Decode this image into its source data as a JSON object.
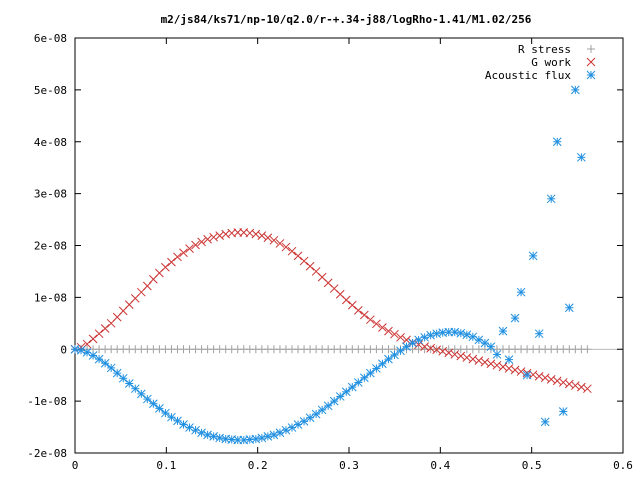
{
  "chart_data": {
    "type": "scatter",
    "title": "m2/js84/ks71/np-10/q2.0/r-+.34-j88/logRho-1.41/M1.02/256",
    "xlabel": "",
    "ylabel": "",
    "xlim": [
      0,
      0.6
    ],
    "ylim": [
      -2e-08,
      6e-08
    ],
    "x_ticks": [
      {
        "v": 0,
        "label": "0"
      },
      {
        "v": 0.1,
        "label": "0.1"
      },
      {
        "v": 0.2,
        "label": "0.2"
      },
      {
        "v": 0.3,
        "label": "0.3"
      },
      {
        "v": 0.4,
        "label": "0.4"
      },
      {
        "v": 0.5,
        "label": "0.5"
      },
      {
        "v": 0.6,
        "label": "0.6"
      }
    ],
    "y_ticks": [
      {
        "v": -2e-08,
        "label": "-2e-08"
      },
      {
        "v": -1e-08,
        "label": "-1e-08"
      },
      {
        "v": 0,
        "label": "0"
      },
      {
        "v": 1e-08,
        "label": "1e-08"
      },
      {
        "v": 2e-08,
        "label": "2e-08"
      },
      {
        "v": 3e-08,
        "label": "3e-08"
      },
      {
        "v": 4e-08,
        "label": "4e-08"
      },
      {
        "v": 5e-08,
        "label": "5e-08"
      },
      {
        "v": 6e-08,
        "label": "6e-08"
      }
    ],
    "legend_position": "top-right",
    "grid": false,
    "series": [
      {
        "name": "R stress",
        "marker": "plus",
        "color": "#a0a0a0",
        "points": [
          [
            0,
            0
          ],
          [
            0.0066,
            0
          ],
          [
            0.0132,
            0
          ],
          [
            0.0198,
            0
          ],
          [
            0.0264,
            0
          ],
          [
            0.033,
            0
          ],
          [
            0.0396,
            0
          ],
          [
            0.0462,
            0
          ],
          [
            0.0528,
            0
          ],
          [
            0.0594,
            0
          ],
          [
            0.066,
            0
          ],
          [
            0.0726,
            0
          ],
          [
            0.0792,
            0
          ],
          [
            0.0858,
            0
          ],
          [
            0.0924,
            0
          ],
          [
            0.099,
            0
          ],
          [
            0.1056,
            0
          ],
          [
            0.1122,
            0
          ],
          [
            0.1188,
            0
          ],
          [
            0.1254,
            0
          ],
          [
            0.132,
            0
          ],
          [
            0.1386,
            0
          ],
          [
            0.1452,
            0
          ],
          [
            0.1518,
            0
          ],
          [
            0.1584,
            0
          ],
          [
            0.165,
            0
          ],
          [
            0.1716,
            0
          ],
          [
            0.1782,
            0
          ],
          [
            0.1848,
            0
          ],
          [
            0.1914,
            0
          ],
          [
            0.198,
            0
          ],
          [
            0.2046,
            0
          ],
          [
            0.2112,
            0
          ],
          [
            0.2178,
            0
          ],
          [
            0.2244,
            0
          ],
          [
            0.231,
            0
          ],
          [
            0.2376,
            0
          ],
          [
            0.2442,
            0
          ],
          [
            0.2508,
            0
          ],
          [
            0.2574,
            0
          ],
          [
            0.264,
            0
          ],
          [
            0.2706,
            0
          ],
          [
            0.2772,
            0
          ],
          [
            0.2838,
            0
          ],
          [
            0.2904,
            0
          ],
          [
            0.297,
            0
          ],
          [
            0.3036,
            0
          ],
          [
            0.3102,
            0
          ],
          [
            0.3168,
            0
          ],
          [
            0.3234,
            0
          ],
          [
            0.33,
            0
          ],
          [
            0.3366,
            0
          ],
          [
            0.3432,
            0
          ],
          [
            0.3498,
            0
          ],
          [
            0.3564,
            0
          ],
          [
            0.363,
            0
          ],
          [
            0.3696,
            0
          ],
          [
            0.3762,
            0
          ],
          [
            0.3828,
            0
          ],
          [
            0.3894,
            0
          ],
          [
            0.396,
            0
          ],
          [
            0.4026,
            0
          ],
          [
            0.4092,
            0
          ],
          [
            0.4158,
            0
          ],
          [
            0.4224,
            0
          ],
          [
            0.429,
            0
          ],
          [
            0.4356,
            0
          ],
          [
            0.4422,
            0
          ],
          [
            0.4488,
            0
          ],
          [
            0.4554,
            0
          ],
          [
            0.462,
            0
          ],
          [
            0.4686,
            0
          ],
          [
            0.4752,
            0
          ],
          [
            0.4818,
            0
          ],
          [
            0.4884,
            0
          ],
          [
            0.495,
            0
          ],
          [
            0.5016,
            0
          ],
          [
            0.5082,
            0
          ],
          [
            0.5148,
            0
          ],
          [
            0.5214,
            0
          ],
          [
            0.528,
            0
          ],
          [
            0.5346,
            0
          ],
          [
            0.5412,
            0
          ],
          [
            0.5478,
            0
          ],
          [
            0.5544,
            0
          ],
          [
            0.561,
            0
          ]
        ]
      },
      {
        "name": "G work",
        "marker": "x",
        "color": "#cc3333",
        "points": [
          [
            0,
            0
          ],
          [
            0.0066,
            4e-10
          ],
          [
            0.0132,
            1e-09
          ],
          [
            0.0198,
            2e-09
          ],
          [
            0.0264,
            3e-09
          ],
          [
            0.033,
            4e-09
          ],
          [
            0.0396,
            5e-09
          ],
          [
            0.0462,
            6.2e-09
          ],
          [
            0.0528,
            7.4e-09
          ],
          [
            0.0594,
            8.6e-09
          ],
          [
            0.066,
            9.8e-09
          ],
          [
            0.0726,
            1.1e-08
          ],
          [
            0.0792,
            1.22e-08
          ],
          [
            0.0858,
            1.35e-08
          ],
          [
            0.0924,
            1.47e-08
          ],
          [
            0.099,
            1.58e-08
          ],
          [
            0.1056,
            1.68e-08
          ],
          [
            0.1122,
            1.78e-08
          ],
          [
            0.1188,
            1.86e-08
          ],
          [
            0.1254,
            1.94e-08
          ],
          [
            0.132,
            2.01e-08
          ],
          [
            0.1386,
            2.07e-08
          ],
          [
            0.1452,
            2.12e-08
          ],
          [
            0.1518,
            2.16e-08
          ],
          [
            0.1584,
            2.19e-08
          ],
          [
            0.165,
            2.22e-08
          ],
          [
            0.1716,
            2.24e-08
          ],
          [
            0.1782,
            2.25e-08
          ],
          [
            0.1848,
            2.25e-08
          ],
          [
            0.1914,
            2.24e-08
          ],
          [
            0.198,
            2.22e-08
          ],
          [
            0.2046,
            2.19e-08
          ],
          [
            0.2112,
            2.15e-08
          ],
          [
            0.2178,
            2.1e-08
          ],
          [
            0.2244,
            2.04e-08
          ],
          [
            0.231,
            1.97e-08
          ],
          [
            0.2376,
            1.89e-08
          ],
          [
            0.2442,
            1.8e-08
          ],
          [
            0.2508,
            1.7e-08
          ],
          [
            0.2574,
            1.6e-08
          ],
          [
            0.264,
            1.5e-08
          ],
          [
            0.2706,
            1.39e-08
          ],
          [
            0.2772,
            1.28e-08
          ],
          [
            0.2838,
            1.17e-08
          ],
          [
            0.2904,
            1.06e-08
          ],
          [
            0.297,
            9.5e-09
          ],
          [
            0.3036,
            8.5e-09
          ],
          [
            0.3102,
            7.5e-09
          ],
          [
            0.3168,
            6.6e-09
          ],
          [
            0.3234,
            5.7e-09
          ],
          [
            0.33,
            4.9e-09
          ],
          [
            0.3366,
            4.2e-09
          ],
          [
            0.3432,
            3.5e-09
          ],
          [
            0.3498,
            2.9e-09
          ],
          [
            0.3564,
            2.3e-09
          ],
          [
            0.363,
            1.8e-09
          ],
          [
            0.3696,
            1.3e-09
          ],
          [
            0.3762,
            9e-10
          ],
          [
            0.3828,
            5e-10
          ],
          [
            0.3894,
            2e-10
          ],
          [
            0.396,
            -1e-10
          ],
          [
            0.4026,
            -4e-10
          ],
          [
            0.4092,
            -7e-10
          ],
          [
            0.4158,
            -1e-09
          ],
          [
            0.4224,
            -1.3e-09
          ],
          [
            0.429,
            -1.6e-09
          ],
          [
            0.4356,
            -1.9e-09
          ],
          [
            0.4422,
            -2.2e-09
          ],
          [
            0.4488,
            -2.5e-09
          ],
          [
            0.4554,
            -2.8e-09
          ],
          [
            0.462,
            -3.1e-09
          ],
          [
            0.4686,
            -3.4e-09
          ],
          [
            0.4752,
            -3.7e-09
          ],
          [
            0.4818,
            -4e-09
          ],
          [
            0.4884,
            -4.3e-09
          ],
          [
            0.495,
            -4.6e-09
          ],
          [
            0.5016,
            -4.9e-09
          ],
          [
            0.5082,
            -5.2e-09
          ],
          [
            0.5148,
            -5.5e-09
          ],
          [
            0.5214,
            -5.8e-09
          ],
          [
            0.528,
            -6.1e-09
          ],
          [
            0.5346,
            -6.4e-09
          ],
          [
            0.5412,
            -6.7e-09
          ],
          [
            0.5478,
            -7e-09
          ],
          [
            0.5544,
            -7.3e-09
          ],
          [
            0.561,
            -7.6e-09
          ]
        ]
      },
      {
        "name": "Acoustic flux",
        "marker": "star",
        "color": "#1f8fe0",
        "points": [
          [
            0,
            0
          ],
          [
            0.0066,
            -2e-10
          ],
          [
            0.0132,
            -6e-10
          ],
          [
            0.0198,
            -1.2e-09
          ],
          [
            0.0264,
            -1.9e-09
          ],
          [
            0.033,
            -2.7e-09
          ],
          [
            0.0396,
            -3.6e-09
          ],
          [
            0.0462,
            -4.6e-09
          ],
          [
            0.0528,
            -5.6e-09
          ],
          [
            0.0594,
            -6.6e-09
          ],
          [
            0.066,
            -7.6e-09
          ],
          [
            0.0726,
            -8.6e-09
          ],
          [
            0.0792,
            -9.6e-09
          ],
          [
            0.0858,
            -1.05e-08
          ],
          [
            0.0924,
            -1.14e-08
          ],
          [
            0.099,
            -1.23e-08
          ],
          [
            0.1056,
            -1.31e-08
          ],
          [
            0.1122,
            -1.38e-08
          ],
          [
            0.1188,
            -1.45e-08
          ],
          [
            0.1254,
            -1.51e-08
          ],
          [
            0.132,
            -1.56e-08
          ],
          [
            0.1386,
            -1.61e-08
          ],
          [
            0.1452,
            -1.65e-08
          ],
          [
            0.1518,
            -1.68e-08
          ],
          [
            0.1584,
            -1.71e-08
          ],
          [
            0.165,
            -1.73e-08
          ],
          [
            0.1716,
            -1.74e-08
          ],
          [
            0.1782,
            -1.75e-08
          ],
          [
            0.1848,
            -1.75e-08
          ],
          [
            0.1914,
            -1.74e-08
          ],
          [
            0.198,
            -1.73e-08
          ],
          [
            0.2046,
            -1.71e-08
          ],
          [
            0.2112,
            -1.68e-08
          ],
          [
            0.2178,
            -1.65e-08
          ],
          [
            0.2244,
            -1.61e-08
          ],
          [
            0.231,
            -1.56e-08
          ],
          [
            0.2376,
            -1.51e-08
          ],
          [
            0.2442,
            -1.45e-08
          ],
          [
            0.2508,
            -1.39e-08
          ],
          [
            0.2574,
            -1.32e-08
          ],
          [
            0.264,
            -1.25e-08
          ],
          [
            0.2706,
            -1.17e-08
          ],
          [
            0.2772,
            -1.09e-08
          ],
          [
            0.2838,
            -1e-08
          ],
          [
            0.2904,
            -9.1e-09
          ],
          [
            0.297,
            -8.2e-09
          ],
          [
            0.3036,
            -7.3e-09
          ],
          [
            0.3102,
            -6.4e-09
          ],
          [
            0.3168,
            -5.5e-09
          ],
          [
            0.3234,
            -4.6e-09
          ],
          [
            0.33,
            -3.7e-09
          ],
          [
            0.3366,
            -2.8e-09
          ],
          [
            0.3432,
            -1.9e-09
          ],
          [
            0.3498,
            -1.1e-09
          ],
          [
            0.3564,
            -3e-10
          ],
          [
            0.363,
            5e-10
          ],
          [
            0.3696,
            1.2e-09
          ],
          [
            0.3762,
            1.8e-09
          ],
          [
            0.3828,
            2.3e-09
          ],
          [
            0.3894,
            2.7e-09
          ],
          [
            0.396,
            3e-09
          ],
          [
            0.4026,
            3.2e-09
          ],
          [
            0.4092,
            3.3e-09
          ],
          [
            0.4158,
            3.3e-09
          ],
          [
            0.4224,
            3.1e-09
          ],
          [
            0.429,
            2.8e-09
          ],
          [
            0.4356,
            2.4e-09
          ],
          [
            0.4422,
            1.8e-09
          ],
          [
            0.4488,
            1.2e-09
          ],
          [
            0.4554,
            5e-10
          ],
          [
            0.462,
            -1e-09
          ],
          [
            0.4686,
            3.5e-09
          ],
          [
            0.4752,
            -2e-09
          ],
          [
            0.4818,
            6e-09
          ],
          [
            0.4884,
            1.1e-08
          ],
          [
            0.495,
            -5e-09
          ],
          [
            0.5016,
            1.8e-08
          ],
          [
            0.5082,
            3e-09
          ],
          [
            0.5148,
            -1.4e-08
          ],
          [
            0.5214,
            2.9e-08
          ],
          [
            0.528,
            4e-08
          ],
          [
            0.5346,
            -1.2e-08
          ],
          [
            0.5412,
            8e-09
          ],
          [
            0.5478,
            5e-08
          ],
          [
            0.5544,
            3.7e-08
          ]
        ]
      }
    ]
  }
}
